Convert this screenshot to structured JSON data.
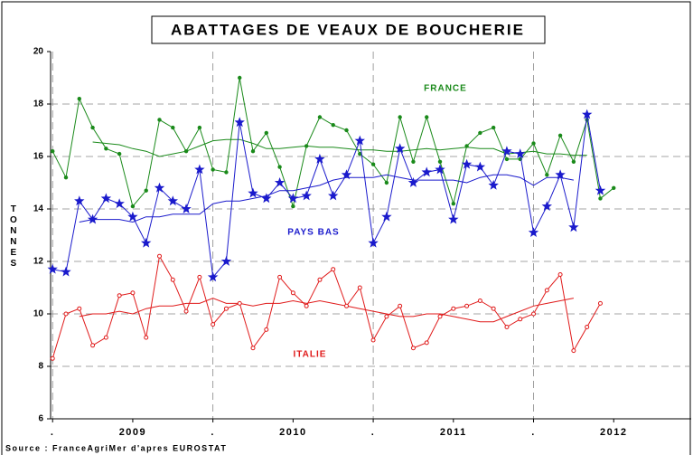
{
  "chart_data": {
    "type": "line",
    "title": "ABATTAGES DE VEAUX DE BOUCHERIE",
    "y_label": "TONNES",
    "source": "Source : FranceAgriMer d'apres EUROSTAT",
    "x": [
      0,
      1,
      2,
      3,
      4,
      5,
      6,
      7,
      8,
      9,
      10,
      11,
      12,
      13,
      14,
      15,
      16,
      17,
      18,
      19,
      20,
      21,
      22,
      23,
      24,
      25,
      26,
      27,
      28,
      29,
      30,
      31,
      32,
      33,
      34,
      35,
      36,
      37,
      38,
      39,
      40,
      41,
      42
    ],
    "xlim": [
      -0.15,
      47.8
    ],
    "xticks": [
      {
        "value": 0,
        "label": "."
      },
      {
        "value": 6,
        "label": "2009"
      },
      {
        "value": 12,
        "label": "."
      },
      {
        "value": 18,
        "label": "2010"
      },
      {
        "value": 24,
        "label": "."
      },
      {
        "value": 30,
        "label": "2011"
      },
      {
        "value": 36,
        "label": "."
      },
      {
        "value": 42,
        "label": "2012"
      }
    ],
    "ylim": [
      6,
      20
    ],
    "yticks": [
      6,
      8,
      10,
      12,
      14,
      16,
      18,
      20
    ],
    "grid": true,
    "series": [
      {
        "name": "FRANCE",
        "color": "#1a8a1a",
        "marker": "dot",
        "values": [
          16.2,
          15.2,
          18.2,
          17.1,
          16.3,
          16.1,
          14.1,
          14.7,
          17.4,
          17.1,
          16.2,
          17.1,
          15.5,
          15.4,
          19.0,
          16.2,
          16.9,
          15.6,
          14.1,
          16.4,
          17.5,
          17.2,
          17.0,
          16.1,
          15.7,
          15.0,
          17.5,
          15.8,
          17.5,
          15.8,
          14.2,
          16.4,
          16.9,
          17.1,
          15.9,
          15.9,
          16.5,
          15.3,
          16.8,
          15.8,
          17.4,
          14.4,
          14.8
        ],
        "trend": [
          null,
          null,
          null,
          16.55,
          16.5,
          16.45,
          16.3,
          16.2,
          16.0,
          16.1,
          16.2,
          16.4,
          16.6,
          16.65,
          16.65,
          16.5,
          16.3,
          16.3,
          16.35,
          16.4,
          16.35,
          16.35,
          16.3,
          16.25,
          16.25,
          16.2,
          16.2,
          16.25,
          16.3,
          16.25,
          16.3,
          16.35,
          16.3,
          16.3,
          16.1,
          16.15,
          16.2,
          16.1,
          16.1,
          16.05,
          16.05,
          null,
          null
        ]
      },
      {
        "name": "PAYS BAS",
        "color": "#1a1acc",
        "marker": "star",
        "values": [
          11.7,
          11.6,
          14.3,
          13.6,
          14.4,
          14.2,
          13.7,
          12.7,
          14.8,
          14.3,
          14.0,
          15.5,
          11.4,
          12.0,
          17.3,
          14.6,
          14.4,
          15.0,
          14.4,
          14.5,
          15.9,
          14.5,
          15.3,
          16.6,
          12.7,
          13.7,
          16.3,
          15.0,
          15.4,
          15.5,
          13.6,
          15.7,
          15.6,
          14.9,
          16.2,
          16.1,
          13.1,
          14.1,
          15.3,
          13.3,
          17.6,
          14.7,
          null
        ],
        "trend": [
          null,
          null,
          13.5,
          13.6,
          13.6,
          13.6,
          13.5,
          13.7,
          13.7,
          13.8,
          13.8,
          13.8,
          14.2,
          14.3,
          14.3,
          14.4,
          14.5,
          14.7,
          14.7,
          14.8,
          14.9,
          15.1,
          15.2,
          15.2,
          15.2,
          15.3,
          15.2,
          15.1,
          15.1,
          15.1,
          15.1,
          15.0,
          15.2,
          15.3,
          15.3,
          15.2,
          14.9,
          15.2,
          15.2,
          15.1,
          null,
          null,
          null
        ]
      },
      {
        "name": "ITALIE",
        "color": "#e01a1a",
        "marker": "circle",
        "values": [
          8.3,
          10.0,
          10.2,
          8.8,
          9.1,
          10.7,
          10.8,
          9.1,
          12.2,
          11.3,
          10.1,
          11.4,
          9.6,
          10.2,
          10.4,
          8.7,
          9.4,
          11.4,
          10.8,
          10.3,
          11.3,
          11.7,
          10.3,
          11.0,
          9.0,
          9.9,
          10.3,
          8.7,
          8.9,
          9.9,
          10.2,
          10.3,
          10.5,
          10.2,
          9.5,
          9.8,
          10.0,
          10.9,
          11.5,
          8.6,
          9.5,
          10.4,
          null
        ],
        "trend": [
          null,
          null,
          9.9,
          10.0,
          10.0,
          10.1,
          10.0,
          10.2,
          10.3,
          10.3,
          10.4,
          10.4,
          10.6,
          10.4,
          10.4,
          10.3,
          10.4,
          10.4,
          10.5,
          10.4,
          10.5,
          10.4,
          10.3,
          10.2,
          10.1,
          10.0,
          9.9,
          9.9,
          10.0,
          10.0,
          9.9,
          9.8,
          9.7,
          9.7,
          9.9,
          10.1,
          10.3,
          10.4,
          10.5,
          10.6,
          null,
          null,
          null
        ]
      }
    ]
  }
}
